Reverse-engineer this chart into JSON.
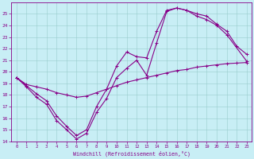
{
  "bg_color": "#c8eef5",
  "grid_color": "#99cccc",
  "line_color": "#880088",
  "xlabel": "Windchill (Refroidissement éolien,°C)",
  "xlim": [
    0,
    23
  ],
  "ylim": [
    14,
    26
  ],
  "yticks": [
    14,
    15,
    16,
    17,
    18,
    19,
    20,
    21,
    22,
    23,
    24,
    25
  ],
  "xticks": [
    0,
    1,
    2,
    3,
    4,
    5,
    6,
    7,
    8,
    9,
    10,
    11,
    12,
    13,
    14,
    15,
    16,
    17,
    18,
    19,
    20,
    21,
    22,
    23
  ],
  "lines": [
    [
      0,
      1,
      2,
      3,
      4,
      5,
      6,
      7,
      8,
      9,
      10,
      11,
      12,
      13,
      14,
      15,
      16,
      17,
      18,
      19,
      20,
      21,
      22,
      23
    ],
    [
      19.5,
      18.8,
      18.1,
      17.5,
      16.2,
      15.3,
      14.5,
      15.0,
      17.0,
      18.5,
      20.5,
      21.7,
      21.3,
      21.2,
      23.5,
      25.3,
      25.5,
      25.3,
      25.0,
      24.8,
      24.1,
      23.5,
      22.2,
      21.5
    ],
    [
      0,
      1,
      2,
      3,
      4,
      5,
      6,
      7,
      8,
      9,
      10,
      11,
      12,
      13,
      14,
      15,
      16,
      17,
      18,
      19,
      20,
      21,
      23
    ],
    [
      19.5,
      18.7,
      17.8,
      17.2,
      15.8,
      15.0,
      14.2,
      14.7,
      16.5,
      17.7,
      19.5,
      20.3,
      21.0,
      19.7,
      22.5,
      25.2,
      25.5,
      25.3,
      24.8,
      24.5,
      24.0,
      23.2,
      20.9
    ],
    [
      0,
      1,
      2,
      3,
      4,
      5,
      6,
      7,
      8,
      9,
      10,
      11,
      12,
      13,
      14,
      15,
      16,
      17,
      18,
      19,
      20,
      21,
      22,
      23
    ],
    [
      19.5,
      18.9,
      18.7,
      18.5,
      18.2,
      18.0,
      17.8,
      17.9,
      18.2,
      18.5,
      18.8,
      19.1,
      19.3,
      19.5,
      19.7,
      19.9,
      20.1,
      20.2,
      20.4,
      20.5,
      20.6,
      20.7,
      20.75,
      20.8
    ]
  ],
  "lw": 0.8,
  "ms": 3.0
}
